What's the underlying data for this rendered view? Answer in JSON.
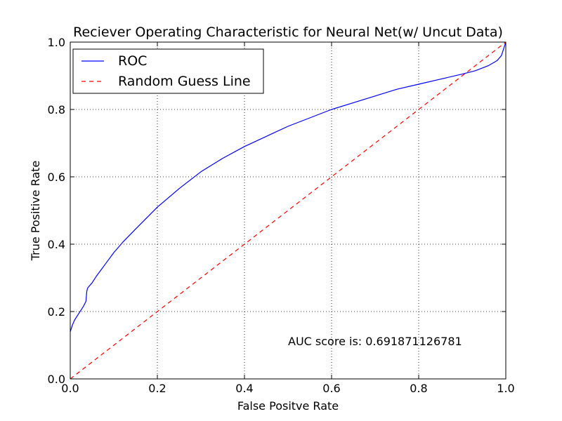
{
  "chart_data": {
    "type": "line",
    "title": "Reciever Operating Characteristic for Neural Net(w/ Uncut Data)",
    "xlabel": "False Positve Rate",
    "ylabel": "True Positive Rate",
    "xlim": [
      0.0,
      1.0
    ],
    "ylim": [
      0.0,
      1.0
    ],
    "x_ticks": [
      "0.0",
      "0.2",
      "0.4",
      "0.6",
      "0.8",
      "1.0"
    ],
    "y_ticks": [
      "0.0",
      "0.2",
      "0.4",
      "0.6",
      "0.8",
      "1.0"
    ],
    "grid": true,
    "legend_position": "top-left",
    "series": [
      {
        "name": "ROC",
        "color": "#0000ff",
        "style": "solid",
        "x": [
          0.0,
          0.005,
          0.01,
          0.02,
          0.03,
          0.036,
          0.038,
          0.04,
          0.05,
          0.06,
          0.08,
          0.1,
          0.12,
          0.15,
          0.2,
          0.25,
          0.3,
          0.35,
          0.4,
          0.45,
          0.5,
          0.55,
          0.6,
          0.65,
          0.7,
          0.75,
          0.8,
          0.85,
          0.9,
          0.93,
          0.96,
          0.98,
          0.99,
          0.995,
          1.0
        ],
        "y": [
          0.14,
          0.16,
          0.175,
          0.195,
          0.215,
          0.23,
          0.26,
          0.27,
          0.285,
          0.305,
          0.34,
          0.375,
          0.405,
          0.445,
          0.51,
          0.565,
          0.615,
          0.655,
          0.69,
          0.72,
          0.75,
          0.775,
          0.8,
          0.82,
          0.84,
          0.86,
          0.875,
          0.89,
          0.905,
          0.915,
          0.93,
          0.945,
          0.96,
          0.98,
          1.0
        ]
      },
      {
        "name": "Random Guess Line",
        "color": "#ff0000",
        "style": "dashed",
        "x": [
          0.0,
          1.0
        ],
        "y": [
          0.0,
          1.0
        ]
      }
    ],
    "annotation": "AUC score is: 0.691871126781"
  }
}
